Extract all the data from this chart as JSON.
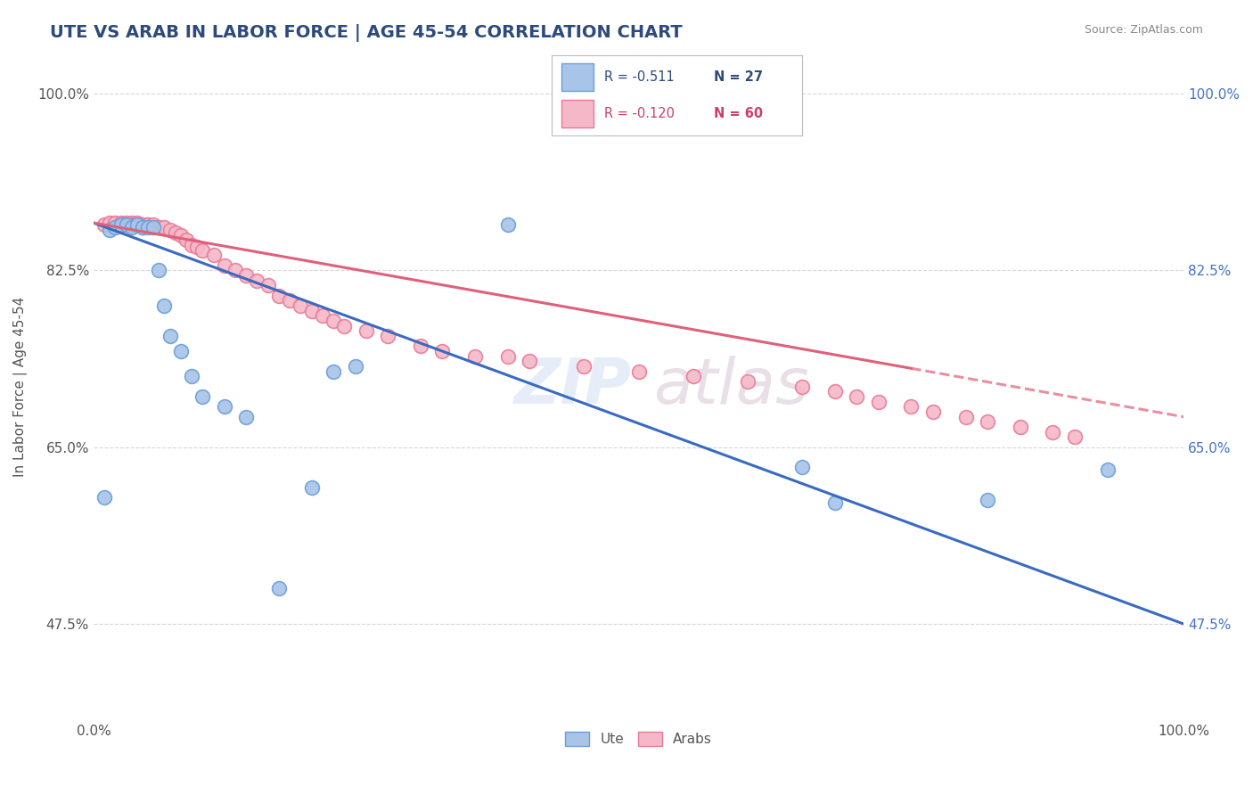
{
  "title": "UTE VS ARAB IN LABOR FORCE | AGE 45-54 CORRELATION CHART",
  "source_text": "Source: ZipAtlas.com",
  "ylabel": "In Labor Force | Age 45-54",
  "xlim": [
    0.0,
    1.0
  ],
  "ylim": [
    0.38,
    1.04
  ],
  "xticks": [
    0.0,
    0.1,
    0.2,
    0.3,
    0.4,
    0.5,
    0.6,
    0.7,
    0.8,
    0.9,
    1.0
  ],
  "ytick_positions": [
    0.475,
    0.65,
    0.825,
    1.0
  ],
  "yticklabels": [
    "47.5%",
    "65.0%",
    "82.5%",
    "100.0%"
  ],
  "ute_color": "#a8c4e8",
  "arab_color": "#f5b8c8",
  "ute_edge": "#6a9fd8",
  "arab_edge": "#e87a96",
  "blue_line_color": "#3a6bbf",
  "pink_line_color": "#e0607a",
  "R_ute": "-0.511",
  "N_ute": "27",
  "R_arab": "-0.120",
  "N_arab": "60",
  "grid_color": "#d8d8d8",
  "background_color": "#ffffff",
  "ute_x": [
    0.01,
    0.015,
    0.02,
    0.025,
    0.03,
    0.035,
    0.04,
    0.045,
    0.05,
    0.055,
    0.06,
    0.065,
    0.07,
    0.08,
    0.09,
    0.1,
    0.12,
    0.14,
    0.17,
    0.2,
    0.22,
    0.24,
    0.38,
    0.65,
    0.68,
    0.82,
    0.93
  ],
  "ute_y": [
    0.6,
    0.865,
    0.868,
    0.87,
    0.87,
    0.868,
    0.87,
    0.868,
    0.868,
    0.868,
    0.825,
    0.79,
    0.76,
    0.745,
    0.72,
    0.7,
    0.69,
    0.68,
    0.51,
    0.61,
    0.725,
    0.73,
    0.87,
    0.63,
    0.595,
    0.598,
    0.628
  ],
  "arab_x": [
    0.01,
    0.015,
    0.02,
    0.025,
    0.025,
    0.03,
    0.03,
    0.035,
    0.035,
    0.04,
    0.04,
    0.045,
    0.045,
    0.05,
    0.05,
    0.055,
    0.06,
    0.065,
    0.07,
    0.075,
    0.08,
    0.085,
    0.09,
    0.095,
    0.1,
    0.11,
    0.12,
    0.13,
    0.14,
    0.15,
    0.16,
    0.17,
    0.18,
    0.19,
    0.2,
    0.21,
    0.22,
    0.23,
    0.25,
    0.27,
    0.3,
    0.32,
    0.35,
    0.38,
    0.4,
    0.45,
    0.5,
    0.55,
    0.6,
    0.65,
    0.68,
    0.7,
    0.72,
    0.75,
    0.77,
    0.8,
    0.82,
    0.85,
    0.88,
    0.9
  ],
  "arab_y": [
    0.87,
    0.872,
    0.872,
    0.872,
    0.87,
    0.872,
    0.87,
    0.872,
    0.87,
    0.872,
    0.87,
    0.87,
    0.868,
    0.87,
    0.87,
    0.87,
    0.868,
    0.868,
    0.865,
    0.862,
    0.86,
    0.855,
    0.85,
    0.848,
    0.845,
    0.84,
    0.83,
    0.825,
    0.82,
    0.815,
    0.81,
    0.8,
    0.795,
    0.79,
    0.785,
    0.78,
    0.775,
    0.77,
    0.765,
    0.76,
    0.75,
    0.745,
    0.74,
    0.74,
    0.735,
    0.73,
    0.725,
    0.72,
    0.715,
    0.71,
    0.705,
    0.7,
    0.695,
    0.69,
    0.685,
    0.68,
    0.675,
    0.67,
    0.665,
    0.66
  ],
  "title_fontsize": 14,
  "axis_label_fontsize": 11,
  "tick_fontsize": 11
}
